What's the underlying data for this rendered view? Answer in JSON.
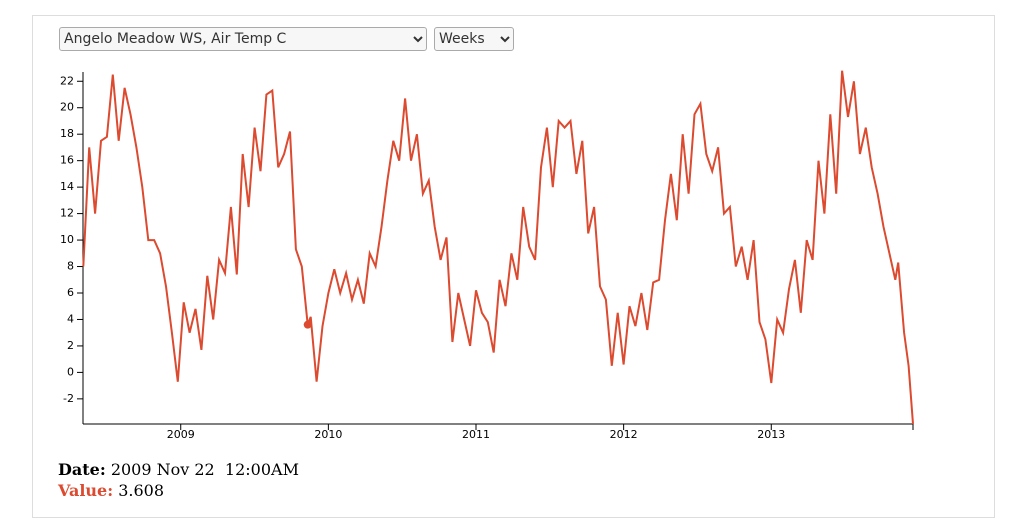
{
  "controls": {
    "station": "Angelo Meadow WS, Air Temp C",
    "period": "Weeks"
  },
  "chart_data": {
    "type": "line",
    "x": [
      2008.34,
      2008.38,
      2008.42,
      2008.46,
      2008.5,
      2008.54,
      2008.58,
      2008.62,
      2008.66,
      2008.7,
      2008.74,
      2008.78,
      2008.82,
      2008.86,
      2008.9,
      2008.94,
      2008.98,
      2009.02,
      2009.06,
      2009.1,
      2009.14,
      2009.18,
      2009.22,
      2009.26,
      2009.3,
      2009.34,
      2009.38,
      2009.42,
      2009.46,
      2009.5,
      2009.54,
      2009.58,
      2009.62,
      2009.66,
      2009.7,
      2009.74,
      2009.78,
      2009.82,
      2009.86,
      2009.88,
      2009.92,
      2009.96,
      2010.0,
      2010.04,
      2010.08,
      2010.12,
      2010.16,
      2010.2,
      2010.24,
      2010.28,
      2010.32,
      2010.36,
      2010.4,
      2010.44,
      2010.48,
      2010.52,
      2010.56,
      2010.6,
      2010.64,
      2010.68,
      2010.72,
      2010.76,
      2010.8,
      2010.84,
      2010.88,
      2010.92,
      2010.96,
      2011.0,
      2011.04,
      2011.08,
      2011.12,
      2011.16,
      2011.2,
      2011.24,
      2011.28,
      2011.32,
      2011.36,
      2011.4,
      2011.44,
      2011.48,
      2011.52,
      2011.56,
      2011.6,
      2011.64,
      2011.68,
      2011.72,
      2011.76,
      2011.8,
      2011.84,
      2011.88,
      2011.92,
      2011.96,
      2012.0,
      2012.04,
      2012.08,
      2012.12,
      2012.16,
      2012.2,
      2012.24,
      2012.28,
      2012.32,
      2012.36,
      2012.4,
      2012.44,
      2012.48,
      2012.52,
      2012.56,
      2012.6,
      2012.64,
      2012.68,
      2012.72,
      2012.76,
      2012.8,
      2012.84,
      2012.88,
      2012.92,
      2012.96,
      2013.0,
      2013.04,
      2013.08,
      2013.12,
      2013.16,
      2013.2,
      2013.24,
      2013.28,
      2013.32,
      2013.36,
      2013.4,
      2013.44,
      2013.48,
      2013.52,
      2013.56,
      2013.6,
      2013.64,
      2013.68,
      2013.72,
      2013.76,
      2013.8,
      2013.84,
      2013.86,
      2013.9,
      2013.93,
      2013.96
    ],
    "series": [
      {
        "color": "#dc4a30",
        "values": [
          8,
          17,
          12,
          17.5,
          17.8,
          22.5,
          17.5,
          21.5,
          19.5,
          17,
          14,
          10,
          10,
          9,
          6.5,
          3,
          -0.7,
          5.3,
          3,
          4.8,
          1.7,
          7.3,
          4,
          8.5,
          7.5,
          12.5,
          7.4,
          16.5,
          12.5,
          18.5,
          15.2,
          21,
          21.3,
          15.5,
          16.5,
          18.2,
          9.3,
          8,
          3.608,
          4.2,
          -0.7,
          3.5,
          6,
          7.8,
          6,
          7.5,
          5.5,
          7,
          5.2,
          9,
          8,
          11,
          14.5,
          17.5,
          16,
          20.7,
          16,
          18,
          13.5,
          14.5,
          11,
          8.5,
          10.2,
          2.3,
          6,
          4,
          2,
          6.2,
          4.5,
          3.8,
          1.5,
          7,
          5,
          9,
          7,
          12.5,
          9.5,
          8.5,
          15.5,
          18.5,
          14,
          19,
          18.5,
          19,
          15,
          17.5,
          10.5,
          12.5,
          6.5,
          5.5,
          0.5,
          4.5,
          0.6,
          5,
          3.5,
          6,
          3.2,
          6.8,
          7,
          11.5,
          15,
          11.5,
          18,
          13.5,
          19.5,
          20.3,
          16.5,
          15.2,
          17,
          12,
          12.5,
          8,
          9.5,
          7,
          10,
          3.8,
          2.5,
          -0.8,
          4,
          3,
          6.3,
          8.5,
          4.5,
          10,
          8.5,
          16,
          12,
          19.5,
          13.5,
          22.8,
          19.3,
          22,
          16.5,
          18.5,
          15.5,
          13.5,
          11,
          9,
          7,
          8.3,
          3,
          0.5,
          -3.9
        ]
      }
    ],
    "xlim": [
      2008.338,
      2013.96
    ],
    "xticks": [
      2009,
      2010,
      2011,
      2012,
      2013
    ],
    "ylim": [
      -3.9,
      22.7
    ],
    "yticks": [
      -2,
      0,
      2,
      4,
      6,
      8,
      10,
      12,
      14,
      16,
      18,
      20,
      22
    ],
    "readout": {
      "date_label": "Date:",
      "date": "2009 Nov 22  12:00AM",
      "value_label": "Value:",
      "value": 3.608
    }
  }
}
